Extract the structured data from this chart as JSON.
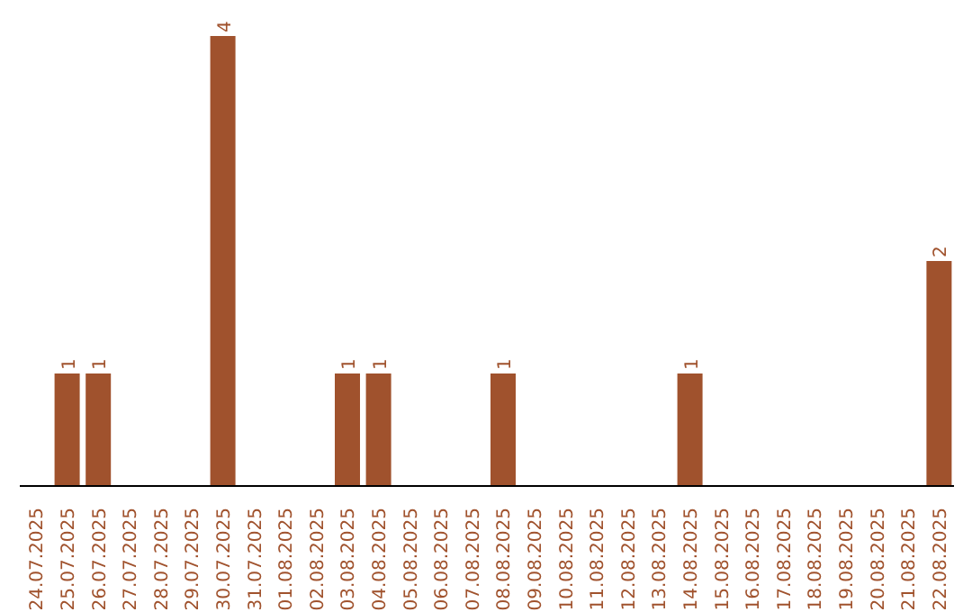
{
  "chart_data": {
    "type": "bar",
    "categories": [
      "24.07.2025",
      "25.07.2025",
      "26.07.2025",
      "27.07.2025",
      "28.07.2025",
      "29.07.2025",
      "30.07.2025",
      "31.07.2025",
      "01.08.2025",
      "02.08.2025",
      "03.08.2025",
      "04.08.2025",
      "05.08.2025",
      "06.08.2025",
      "07.08.2025",
      "08.08.2025",
      "09.08.2025",
      "10.08.2025",
      "11.08.2025",
      "12.08.2025",
      "13.08.2025",
      "14.08.2025",
      "15.08.2025",
      "16.08.2025",
      "17.08.2025",
      "18.08.2025",
      "19.08.2025",
      "20.08.2025",
      "21.08.2025",
      "22.08.2025"
    ],
    "values": [
      0,
      1,
      1,
      0,
      0,
      0,
      4,
      0,
      0,
      0,
      1,
      1,
      0,
      0,
      0,
      1,
      0,
      0,
      0,
      0,
      0,
      1,
      0,
      0,
      0,
      0,
      0,
      0,
      0,
      2
    ],
    "value_labels": [
      null,
      "1",
      "1",
      null,
      null,
      null,
      "4",
      null,
      null,
      null,
      "1",
      "1",
      null,
      null,
      null,
      "1",
      null,
      null,
      null,
      null,
      null,
      "1",
      null,
      null,
      null,
      null,
      null,
      null,
      null,
      "2"
    ],
    "color": "#a0522d",
    "grid": false,
    "legend": false
  }
}
